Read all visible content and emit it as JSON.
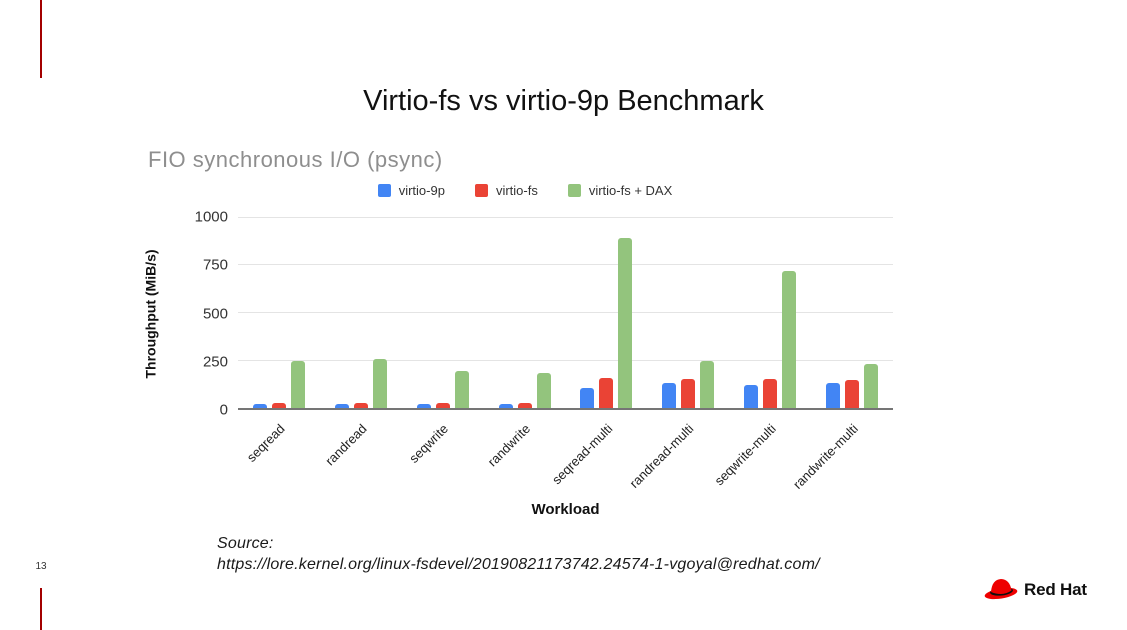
{
  "slide": {
    "title": "Virtio-fs vs virtio-9p Benchmark",
    "page_number": "13",
    "source_label": "Source:",
    "source_url": "https://lore.kernel.org/linux-fsdevel/20190821173742.24574-1-vgoyal@redhat.com/",
    "logo_text": "Red Hat",
    "colors": {
      "accent_red": "#a30000",
      "logo_red": "#ee0000"
    }
  },
  "chart_data": {
    "type": "bar",
    "title": "FIO synchronous I/O (psync)",
    "xlabel": "Workload",
    "ylabel": "Throughput (MiB/s)",
    "ylim": [
      0,
      1000
    ],
    "yticks": [
      0,
      250,
      500,
      750,
      1000
    ],
    "grid": true,
    "legend_position": "top",
    "categories": [
      "seqread",
      "randread",
      "seqwrite",
      "randwrite",
      "seqread-multi",
      "randread-multi",
      "seqwrite-multi",
      "randwrite-multi"
    ],
    "series": [
      {
        "name": "virtio-9p",
        "color": "#4285F4",
        "values": [
          23,
          23,
          22,
          22,
          107,
          130,
          119,
          130
        ]
      },
      {
        "name": "virtio-fs",
        "color": "#EA4335",
        "values": [
          28,
          28,
          28,
          28,
          155,
          150,
          152,
          148
        ]
      },
      {
        "name": "virtio-fs + DAX",
        "color": "#93C47D",
        "values": [
          245,
          257,
          196,
          183,
          890,
          246,
          715,
          232
        ]
      }
    ]
  }
}
